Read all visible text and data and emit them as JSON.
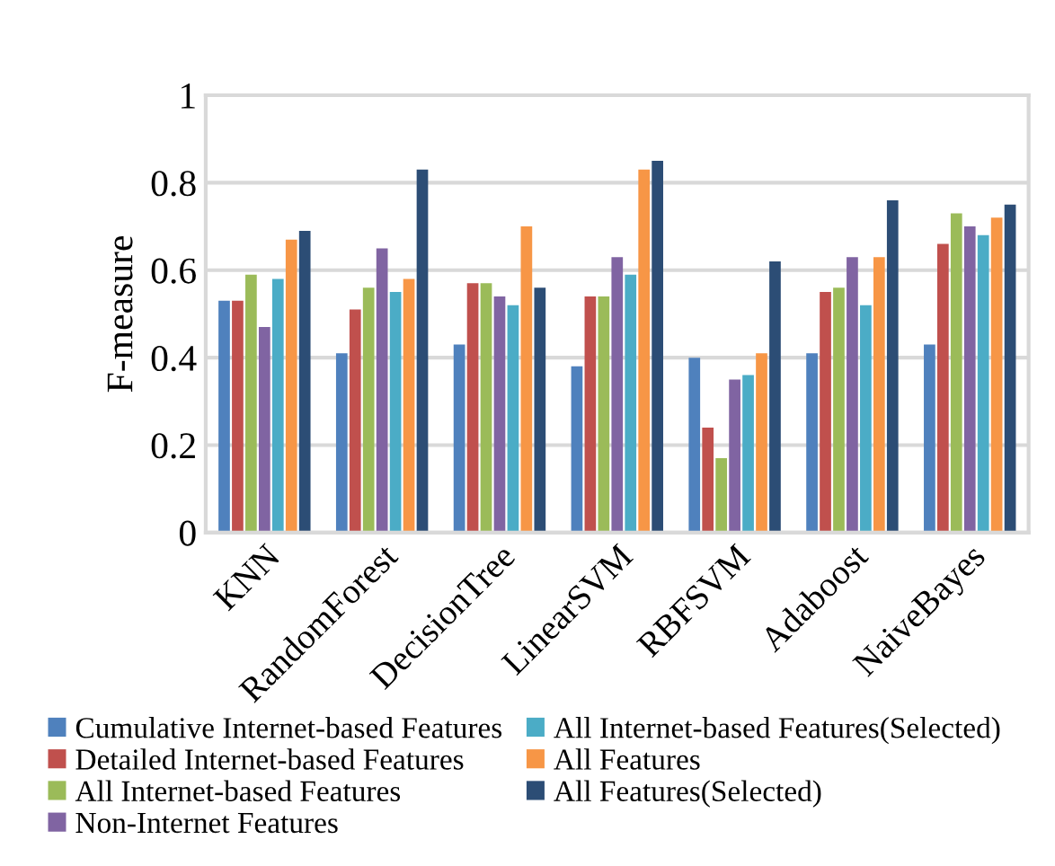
{
  "chart_data": {
    "type": "bar",
    "ylabel": "F-measure",
    "categories": [
      "KNN",
      "RandomForest",
      "DecisionTree",
      "LinearSVM",
      "RBFSVM",
      "Adaboost",
      "NaiveBayes"
    ],
    "ylim": [
      0,
      1
    ],
    "yticks": [
      0,
      0.2,
      0.4,
      0.6,
      0.8,
      1
    ],
    "grid": "y",
    "legend": "bottom",
    "series": [
      {
        "name": "Cumulative Internet-based Features",
        "color": "#4f81bd",
        "values": [
          0.53,
          0.41,
          0.43,
          0.38,
          0.4,
          0.41,
          0.43
        ]
      },
      {
        "name": "Detailed Internet-based Features",
        "color": "#c0504d",
        "values": [
          0.53,
          0.51,
          0.57,
          0.54,
          0.24,
          0.55,
          0.66
        ]
      },
      {
        "name": "All Internet-based Features",
        "color": "#9bbb59",
        "values": [
          0.59,
          0.56,
          0.57,
          0.54,
          0.17,
          0.56,
          0.73
        ]
      },
      {
        "name": "Non-Internet Features",
        "color": "#8064a2",
        "values": [
          0.47,
          0.65,
          0.54,
          0.63,
          0.35,
          0.63,
          0.7
        ]
      },
      {
        "name": "All Internet-based Features(Selected)",
        "color": "#4bacc6",
        "values": [
          0.58,
          0.55,
          0.52,
          0.59,
          0.36,
          0.52,
          0.68
        ]
      },
      {
        "name": "All Features",
        "color": "#f79646",
        "values": [
          0.67,
          0.58,
          0.7,
          0.83,
          0.41,
          0.63,
          0.72
        ]
      },
      {
        "name": "All Features(Selected)",
        "color": "#2c4d75",
        "values": [
          0.69,
          0.83,
          0.56,
          0.85,
          0.62,
          0.76,
          0.75
        ]
      }
    ]
  }
}
